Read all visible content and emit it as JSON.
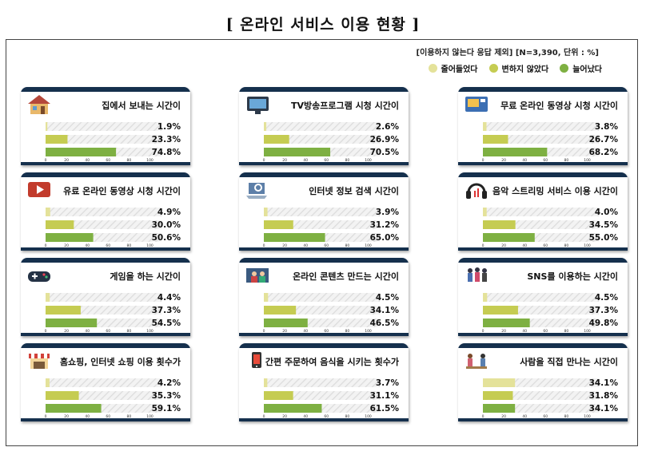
{
  "page": {
    "title": "[ 온라인 서비스 이용 현황 ]"
  },
  "note": "[이용하지 않는다 응답 제외] [N=3,390, 단위 : %]",
  "legend": [
    {
      "label": "줄어들었다",
      "color": "#e4e29a"
    },
    {
      "label": "변하지 않았다",
      "color": "#c5cc52"
    },
    {
      "label": "늘어났다",
      "color": "#7eb042"
    }
  ],
  "chart_data": {
    "type": "bar",
    "orientation": "horizontal",
    "series_names": [
      "줄어들었다",
      "변하지 않았다",
      "늘어났다"
    ],
    "series_colors": [
      "#e4e29a",
      "#c5cc52",
      "#7eb042"
    ],
    "xlim": [
      0,
      100
    ],
    "xticks": [
      0,
      20,
      40,
      60,
      80,
      100
    ],
    "unit": "%",
    "panels": [
      {
        "title": "집에서 보내는 시간이",
        "icon": "house-icon",
        "values": [
          1.9,
          23.3,
          74.8
        ]
      },
      {
        "title": "TV방송프로그램 시청 시간이",
        "icon": "tv-icon",
        "values": [
          2.6,
          26.9,
          70.5
        ]
      },
      {
        "title": "무료 온라인 동영상 시청 시간이",
        "icon": "video-screen-icon",
        "values": [
          3.8,
          26.7,
          68.2
        ]
      },
      {
        "title": "유료 온라인 동영상 시청 시간이",
        "icon": "play-button-icon",
        "values": [
          4.9,
          30.0,
          50.6
        ]
      },
      {
        "title": "인터넷 정보 검색 시간이",
        "icon": "laptop-search-icon",
        "values": [
          3.9,
          31.2,
          65.0
        ]
      },
      {
        "title": "음악 스트리밍 서비스 이용 시간이",
        "icon": "headphones-icon",
        "values": [
          4.0,
          34.5,
          55.0
        ]
      },
      {
        "title": "게임을 하는 시간이",
        "icon": "gamepad-icon",
        "values": [
          4.4,
          37.3,
          54.5
        ]
      },
      {
        "title": "온라인 콘텐츠 만드는 시간이",
        "icon": "content-creator-icon",
        "values": [
          4.5,
          34.1,
          46.5
        ]
      },
      {
        "title": "SNS를 이용하는 시간이",
        "icon": "social-people-icon",
        "values": [
          4.5,
          37.3,
          49.8
        ]
      },
      {
        "title": "홈쇼핑, 인터넷 쇼핑 이용 횟수가",
        "icon": "shop-icon",
        "values": [
          4.2,
          35.3,
          59.1
        ]
      },
      {
        "title": "간편 주문하여 음식을 시키는 횟수가",
        "icon": "food-order-icon",
        "values": [
          3.7,
          31.1,
          61.5
        ]
      },
      {
        "title": "사람을 직접 만나는 시간이",
        "icon": "meeting-people-icon",
        "values": [
          34.1,
          31.8,
          34.1
        ]
      }
    ]
  }
}
